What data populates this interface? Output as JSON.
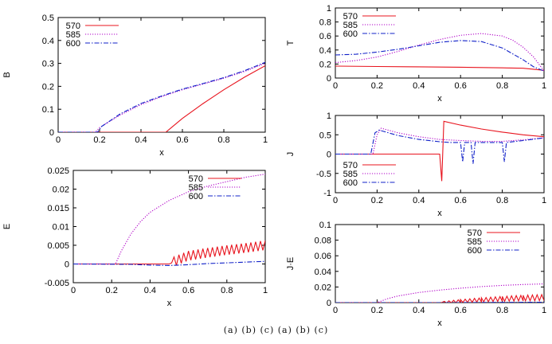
{
  "caption": "(a) (b) (c) (a) (b) (c)",
  "colors": {
    "570": "#e8141e",
    "585": "#b000c8",
    "600": "#1020c8"
  },
  "chart_data": [
    {
      "id": "B",
      "type": "line",
      "title": "",
      "xlabel": "x",
      "ylabel": "B",
      "xlim": [
        0,
        1
      ],
      "ylim": [
        0,
        0.5
      ],
      "xticks": [
        "0",
        "0.2",
        "0.4",
        "0.6",
        "0.8",
        "1"
      ],
      "yticks": [
        "0",
        "0.1",
        "0.2",
        "0.3",
        "0.4",
        "0.5"
      ],
      "legend": "top-left",
      "grid": false,
      "series": [
        {
          "name": "570",
          "color": "#e8141e",
          "style": "solid",
          "x": [
            0,
            0.52,
            0.54,
            0.6,
            0.7,
            0.8,
            0.9,
            1.0
          ],
          "y": [
            0,
            0,
            0.015,
            0.06,
            0.125,
            0.185,
            0.24,
            0.29
          ]
        },
        {
          "name": "585",
          "color": "#b000c8",
          "style": "dotted",
          "x": [
            0,
            0.18,
            0.2,
            0.3,
            0.4,
            0.5,
            0.6,
            0.7,
            0.8,
            0.9,
            1.0
          ],
          "y": [
            0,
            0,
            0.02,
            0.075,
            0.12,
            0.155,
            0.185,
            0.21,
            0.235,
            0.265,
            0.3
          ]
        },
        {
          "name": "600",
          "color": "#1020c8",
          "style": "dashdot",
          "x": [
            0,
            0.19,
            0.21,
            0.3,
            0.4,
            0.5,
            0.6,
            0.7,
            0.8,
            0.9,
            1.0
          ],
          "y": [
            0,
            0,
            0.025,
            0.08,
            0.125,
            0.158,
            0.188,
            0.212,
            0.238,
            0.268,
            0.305
          ]
        }
      ]
    },
    {
      "id": "T",
      "type": "line",
      "title": "",
      "xlabel": "x",
      "ylabel": "T",
      "xlim": [
        0,
        1
      ],
      "ylim": [
        0,
        1
      ],
      "xticks": [
        "0",
        "0.2",
        "0.4",
        "0.6",
        "0.8",
        "1"
      ],
      "yticks": [
        "0",
        "0.2",
        "0.4",
        "0.6",
        "0.8",
        "1"
      ],
      "legend": "top-left",
      "grid": false,
      "series": [
        {
          "name": "570",
          "color": "#e8141e",
          "style": "solid",
          "x": [
            0,
            0.2,
            0.4,
            0.6,
            0.8,
            0.9,
            1.0
          ],
          "y": [
            0.17,
            0.165,
            0.16,
            0.155,
            0.145,
            0.14,
            0.11
          ]
        },
        {
          "name": "585",
          "color": "#b000c8",
          "style": "dotted",
          "x": [
            0,
            0.1,
            0.2,
            0.3,
            0.4,
            0.5,
            0.6,
            0.7,
            0.8,
            0.85,
            0.9,
            0.95,
            1.0
          ],
          "y": [
            0.22,
            0.25,
            0.3,
            0.38,
            0.47,
            0.55,
            0.61,
            0.635,
            0.6,
            0.54,
            0.44,
            0.3,
            0.1
          ]
        },
        {
          "name": "600",
          "color": "#1020c8",
          "style": "dashdot",
          "x": [
            0,
            0.1,
            0.2,
            0.3,
            0.4,
            0.5,
            0.6,
            0.7,
            0.8,
            0.9,
            0.95,
            1.0
          ],
          "y": [
            0.33,
            0.34,
            0.37,
            0.41,
            0.46,
            0.51,
            0.535,
            0.52,
            0.43,
            0.26,
            0.16,
            0.1
          ]
        }
      ]
    },
    {
      "id": "E",
      "type": "line",
      "title": "",
      "xlabel": "x",
      "ylabel": "E",
      "xlim": [
        0,
        1
      ],
      "ylim": [
        -0.005,
        0.025
      ],
      "xticks": [
        "0",
        "0.2",
        "0.4",
        "0.6",
        "0.8",
        "1"
      ],
      "yticks": [
        "-0.005",
        "0",
        "0.005",
        "0.01",
        "0.015",
        "0.02",
        "0.025"
      ],
      "legend": "top-right",
      "grid": false,
      "series": [
        {
          "name": "570",
          "color": "#e8141e",
          "style": "solid",
          "oscillating": true,
          "x": [
            0,
            0.5,
            0.55,
            0.6,
            0.7,
            0.8,
            0.9,
            1.0
          ],
          "y": [
            0,
            0,
            0.0012,
            0.0022,
            0.003,
            0.0037,
            0.0043,
            0.005
          ]
        },
        {
          "name": "585",
          "color": "#b000c8",
          "style": "dotted",
          "x": [
            0,
            0.22,
            0.25,
            0.3,
            0.35,
            0.4,
            0.5,
            0.6,
            0.7,
            0.8,
            0.9,
            1.0
          ],
          "y": [
            0,
            0,
            0.0035,
            0.008,
            0.0113,
            0.0138,
            0.017,
            0.0193,
            0.0208,
            0.022,
            0.0232,
            0.024
          ]
        },
        {
          "name": "600",
          "color": "#1020c8",
          "style": "dashdot",
          "x": [
            0,
            0.3,
            0.4,
            0.5,
            0.6,
            0.7,
            0.8,
            0.9,
            1.0
          ],
          "y": [
            0,
            -0.0001,
            -0.0003,
            -0.0004,
            -0.0002,
            0.0001,
            0.0003,
            0.0005,
            0.0007
          ]
        }
      ]
    },
    {
      "id": "J",
      "type": "line",
      "title": "",
      "xlabel": "x",
      "ylabel": "J",
      "xlim": [
        0,
        1
      ],
      "ylim": [
        -1,
        1
      ],
      "xticks": [
        "0",
        "0.2",
        "0.4",
        "0.6",
        "0.8",
        "1"
      ],
      "yticks": [
        "-1",
        "-0.5",
        "0",
        "0.5",
        "1"
      ],
      "legend": "bottom-left",
      "grid": false,
      "series": [
        {
          "name": "570",
          "color": "#e8141e",
          "style": "solid",
          "x": [
            0,
            0.5,
            0.51,
            0.52,
            0.6,
            0.7,
            0.8,
            0.9,
            1.0
          ],
          "y": [
            0,
            0,
            -0.7,
            0.85,
            0.75,
            0.65,
            0.57,
            0.5,
            0.45
          ]
        },
        {
          "name": "585",
          "color": "#b000c8",
          "style": "dotted",
          "x": [
            0,
            0.18,
            0.2,
            0.22,
            0.3,
            0.4,
            0.5,
            0.6,
            0.7,
            0.8,
            0.9,
            1.0
          ],
          "y": [
            0,
            0,
            0.5,
            0.67,
            0.55,
            0.45,
            0.38,
            0.35,
            0.33,
            0.33,
            0.37,
            0.42
          ]
        },
        {
          "name": "600",
          "color": "#1020c8",
          "style": "dashdot",
          "x": [
            0,
            0.17,
            0.19,
            0.21,
            0.3,
            0.4,
            0.5,
            0.55,
            0.6,
            0.61,
            0.62,
            0.65,
            0.66,
            0.67,
            0.7,
            0.8,
            0.81,
            0.82,
            0.9,
            1.0
          ],
          "y": [
            0,
            0,
            0.55,
            0.62,
            0.48,
            0.38,
            0.32,
            0.3,
            0.3,
            -0.2,
            0.3,
            0.3,
            -0.25,
            0.3,
            0.3,
            0.3,
            -0.2,
            0.3,
            0.35,
            0.42
          ]
        }
      ]
    },
    {
      "id": "JE",
      "type": "line",
      "title": "",
      "xlabel": "x",
      "ylabel": "J·E",
      "xlim": [
        0,
        1
      ],
      "ylim": [
        0,
        0.1
      ],
      "xticks": [
        "0",
        "0.2",
        "0.4",
        "0.6",
        "0.8",
        "1"
      ],
      "yticks": [
        "0",
        "0.02",
        "0.04",
        "0.06",
        "0.08",
        "0.1"
      ],
      "legend": "top-right",
      "grid": false,
      "series": [
        {
          "name": "570",
          "color": "#e8141e",
          "style": "solid",
          "oscillating": true,
          "x": [
            0,
            0.5,
            0.6,
            0.7,
            0.8,
            0.9,
            1.0
          ],
          "y": [
            0,
            0,
            0.002,
            0.0035,
            0.0048,
            0.0058,
            0.0065
          ]
        },
        {
          "name": "585",
          "color": "#b000c8",
          "style": "dotted",
          "x": [
            0,
            0.2,
            0.25,
            0.3,
            0.4,
            0.5,
            0.6,
            0.7,
            0.8,
            0.9,
            1.0
          ],
          "y": [
            0,
            0,
            0.005,
            0.0085,
            0.013,
            0.016,
            0.0185,
            0.0205,
            0.022,
            0.0232,
            0.024
          ]
        },
        {
          "name": "600",
          "color": "#1020c8",
          "style": "dashdot",
          "x": [
            0,
            0.5,
            0.6,
            0.7,
            0.8,
            0.9,
            1.0
          ],
          "y": [
            0,
            0,
            0,
            0.0002,
            0.0003,
            0.0004,
            0.0005
          ]
        }
      ]
    }
  ]
}
